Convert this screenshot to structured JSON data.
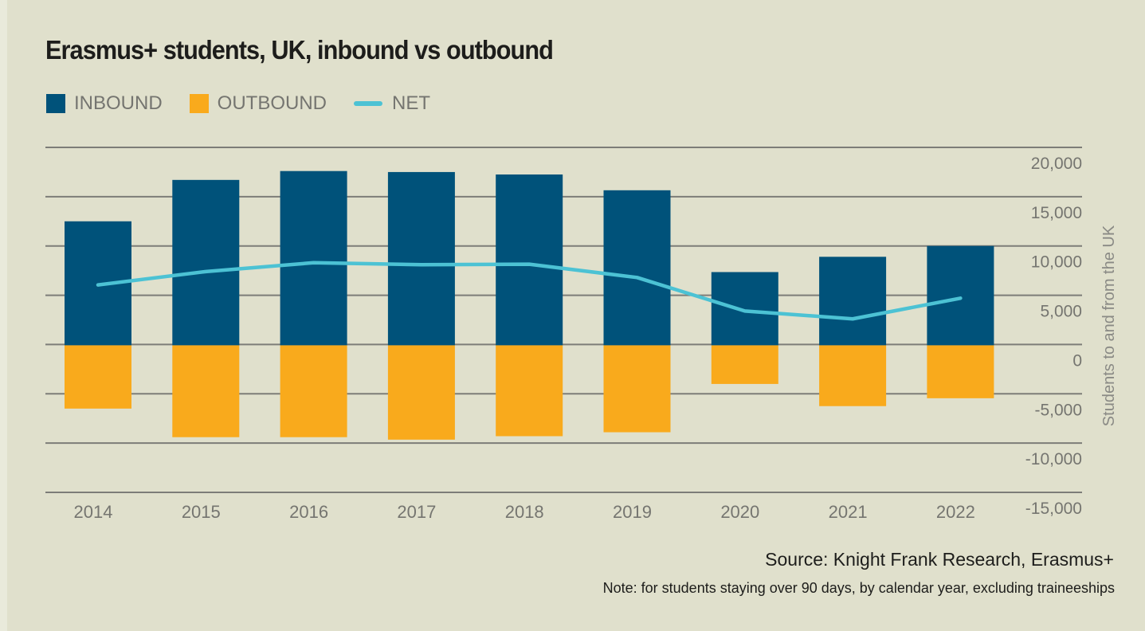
{
  "colors": {
    "inbound": "#00527a",
    "outbound": "#f9aa1c",
    "net": "#4cc2d4",
    "grid": "#7d7d78",
    "tick_text": "#757570",
    "background": "#e0e0cc"
  },
  "chart_data": {
    "type": "bar",
    "title": "Erasmus+ students, UK, inbound vs outbound",
    "xlabel": "",
    "ylabel": "Students to and from the UK",
    "y_axis_position": "right",
    "ylim": [
      -15000,
      20000
    ],
    "yticks": [
      20000,
      15000,
      10000,
      5000,
      0,
      -5000,
      -10000,
      -15000
    ],
    "ytick_labels": [
      "20,000",
      "15,000",
      "10,000",
      "5,000",
      "0",
      "-5,000",
      "-10,000",
      "-15,000"
    ],
    "grid": true,
    "legend_position": "top-left",
    "categories": [
      "2014",
      "2015",
      "2016",
      "2017",
      "2018",
      "2019",
      "2020",
      "2021",
      "2022"
    ],
    "series": [
      {
        "name": "INBOUND",
        "type": "bar",
        "color": "#00527a",
        "values": [
          12500,
          16700,
          17600,
          17500,
          17250,
          15650,
          7350,
          8900,
          10000
        ]
      },
      {
        "name": "OUTBOUND",
        "type": "bar",
        "color": "#f9aa1c",
        "values": [
          -6500,
          -9400,
          -9400,
          -9650,
          -9300,
          -8900,
          -4000,
          -6250,
          -5450
        ]
      },
      {
        "name": "NET",
        "type": "line",
        "color": "#4cc2d4",
        "values": [
          6050,
          7400,
          8300,
          8100,
          8150,
          6800,
          3400,
          2600,
          4700
        ]
      }
    ]
  },
  "legend": {
    "items": [
      {
        "label": "INBOUND"
      },
      {
        "label": "OUTBOUND"
      },
      {
        "label": "NET"
      }
    ]
  },
  "footer": {
    "source": "Source: Knight Frank Research, Erasmus+",
    "note": "Note: for students staying over 90 days, by calendar year, excluding traineeships"
  }
}
